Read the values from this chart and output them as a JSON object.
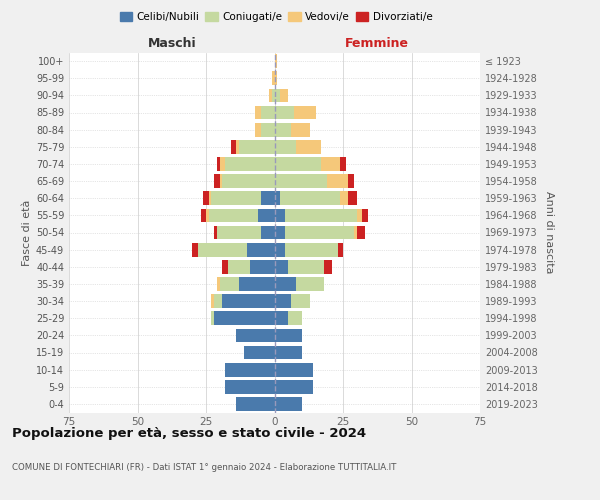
{
  "age_groups": [
    "0-4",
    "5-9",
    "10-14",
    "15-19",
    "20-24",
    "25-29",
    "30-34",
    "35-39",
    "40-44",
    "45-49",
    "50-54",
    "55-59",
    "60-64",
    "65-69",
    "70-74",
    "75-79",
    "80-84",
    "85-89",
    "90-94",
    "95-99",
    "100+"
  ],
  "birth_years": [
    "2019-2023",
    "2014-2018",
    "2009-2013",
    "2004-2008",
    "1999-2003",
    "1994-1998",
    "1989-1993",
    "1984-1988",
    "1979-1983",
    "1974-1978",
    "1969-1973",
    "1964-1968",
    "1959-1963",
    "1954-1958",
    "1949-1953",
    "1944-1948",
    "1939-1943",
    "1934-1938",
    "1929-1933",
    "1924-1928",
    "≤ 1923"
  ],
  "males": {
    "celibi": [
      14,
      18,
      18,
      11,
      14,
      22,
      19,
      13,
      9,
      10,
      5,
      6,
      5,
      0,
      0,
      0,
      0,
      0,
      0,
      0,
      0
    ],
    "coniugati": [
      0,
      0,
      0,
      0,
      0,
      1,
      3,
      7,
      8,
      18,
      16,
      18,
      18,
      19,
      18,
      13,
      5,
      5,
      1,
      0,
      0
    ],
    "vedovi": [
      0,
      0,
      0,
      0,
      0,
      0,
      1,
      1,
      0,
      0,
      0,
      1,
      1,
      1,
      2,
      1,
      2,
      2,
      1,
      1,
      0
    ],
    "divorziati": [
      0,
      0,
      0,
      0,
      0,
      0,
      0,
      0,
      2,
      2,
      1,
      2,
      2,
      2,
      1,
      2,
      0,
      0,
      0,
      0,
      0
    ]
  },
  "females": {
    "nubili": [
      10,
      14,
      14,
      10,
      10,
      5,
      6,
      8,
      5,
      4,
      4,
      4,
      2,
      0,
      0,
      0,
      0,
      0,
      0,
      0,
      0
    ],
    "coniugate": [
      0,
      0,
      0,
      0,
      0,
      5,
      7,
      10,
      13,
      19,
      25,
      26,
      22,
      19,
      17,
      8,
      6,
      7,
      2,
      0,
      0
    ],
    "vedove": [
      0,
      0,
      0,
      0,
      0,
      0,
      0,
      0,
      0,
      0,
      1,
      2,
      3,
      8,
      7,
      9,
      7,
      8,
      3,
      1,
      1
    ],
    "divorziate": [
      0,
      0,
      0,
      0,
      0,
      0,
      0,
      0,
      3,
      2,
      3,
      2,
      3,
      2,
      2,
      0,
      0,
      0,
      0,
      0,
      0
    ]
  },
  "colors": {
    "celibi": "#4a7aac",
    "coniugati": "#c5d9a0",
    "vedovi": "#f5c87a",
    "divorziati": "#cc2222"
  },
  "xlim": 75,
  "title": "Popolazione per età, sesso e stato civile - 2024",
  "subtitle": "COMUNE DI FONTECHIARI (FR) - Dati ISTAT 1° gennaio 2024 - Elaborazione TUTTITALIA.IT",
  "xlabel_left": "Maschi",
  "xlabel_right": "Femmine",
  "ylabel_left": "Fasce di età",
  "ylabel_right": "Anni di nascita",
  "legend_labels": [
    "Celibi/Nubili",
    "Coniugati/e",
    "Vedovi/e",
    "Divorziati/e"
  ],
  "bg_color": "#f0f0f0",
  "plot_bg": "#ffffff"
}
